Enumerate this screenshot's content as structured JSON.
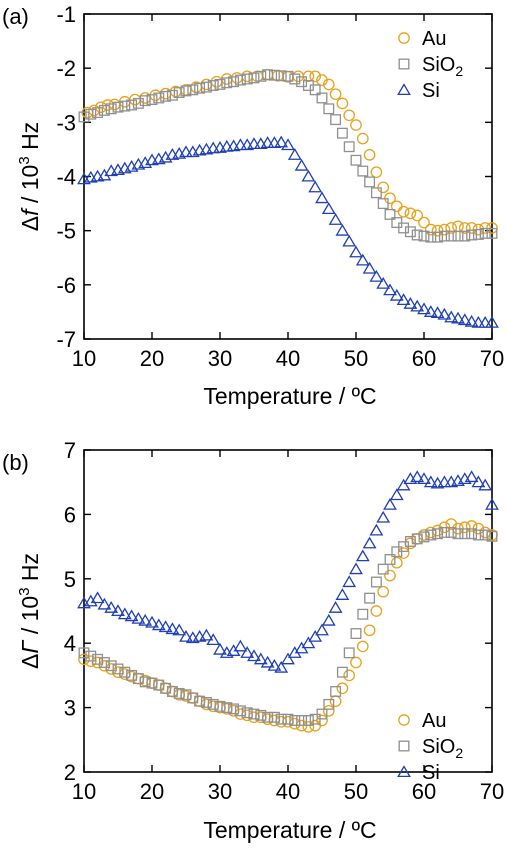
{
  "chart_data": [
    {
      "panel": "(a)",
      "type": "scatter",
      "xlabel": "Temperature / ºC",
      "ylabel_prefix": "Δ",
      "ylabel_symbol": "f",
      "ylabel_mid": " / 10",
      "ylabel_exp": "3",
      "ylabel_unit": " Hz",
      "xlim": [
        10,
        70
      ],
      "ylim": [
        -7,
        -1
      ],
      "xticks": [
        10,
        20,
        30,
        40,
        50,
        60,
        70
      ],
      "yticks": [
        -7,
        -6,
        -5,
        -4,
        -3,
        -2,
        -1
      ],
      "legend_position": "top-right",
      "series": [
        {
          "name": "Au",
          "sub": "",
          "marker": "circle",
          "color": "#e8a21a",
          "x": [
            10.5,
            11.5,
            12.5,
            13.5,
            14.5,
            16,
            17.5,
            19,
            20.5,
            22,
            23.5,
            25,
            26.5,
            28,
            29.5,
            31,
            32.5,
            34,
            35.5,
            37,
            38.5,
            40,
            41.5,
            43,
            44,
            45,
            46,
            47,
            48,
            49,
            50,
            51,
            52,
            53,
            54,
            55,
            56,
            57,
            58,
            59,
            60,
            61,
            62,
            63,
            64,
            65,
            66,
            67,
            68,
            69,
            70
          ],
          "y": [
            -2.82,
            -2.78,
            -2.72,
            -2.68,
            -2.67,
            -2.62,
            -2.58,
            -2.55,
            -2.5,
            -2.47,
            -2.43,
            -2.4,
            -2.35,
            -2.3,
            -2.25,
            -2.2,
            -2.18,
            -2.15,
            -2.15,
            -2.12,
            -2.14,
            -2.16,
            -2.15,
            -2.15,
            -2.15,
            -2.22,
            -2.3,
            -2.48,
            -2.65,
            -2.87,
            -3.05,
            -3.3,
            -3.6,
            -3.92,
            -4.2,
            -4.4,
            -4.55,
            -4.65,
            -4.68,
            -4.72,
            -4.85,
            -4.98,
            -5.0,
            -4.98,
            -4.95,
            -4.92,
            -4.95,
            -4.95,
            -4.98,
            -4.95,
            -4.95
          ]
        },
        {
          "name": "SiO",
          "sub": "2",
          "marker": "square",
          "color": "#909090",
          "x": [
            10,
            11,
            12,
            13,
            14,
            15,
            16,
            17,
            18,
            19,
            20,
            21,
            22,
            23,
            24,
            25,
            26,
            27,
            28,
            29,
            30,
            31,
            32,
            33,
            34,
            35,
            36,
            37,
            38,
            39,
            40,
            41,
            42,
            43,
            44,
            45,
            46,
            47,
            48,
            49,
            50,
            51,
            52,
            53,
            54,
            55,
            56,
            57,
            58,
            59,
            60,
            61,
            62,
            63,
            64,
            65,
            66,
            67,
            68,
            69,
            70
          ],
          "y": [
            -2.9,
            -2.85,
            -2.82,
            -2.78,
            -2.75,
            -2.72,
            -2.7,
            -2.68,
            -2.65,
            -2.6,
            -2.58,
            -2.55,
            -2.52,
            -2.5,
            -2.45,
            -2.42,
            -2.4,
            -2.37,
            -2.35,
            -2.32,
            -2.3,
            -2.27,
            -2.25,
            -2.22,
            -2.2,
            -2.18,
            -2.15,
            -2.12,
            -2.13,
            -2.14,
            -2.15,
            -2.2,
            -2.25,
            -2.32,
            -2.4,
            -2.55,
            -2.75,
            -2.95,
            -3.2,
            -3.45,
            -3.7,
            -3.9,
            -4.1,
            -4.3,
            -4.5,
            -4.7,
            -4.85,
            -4.95,
            -5.02,
            -5.08,
            -5.1,
            -5.12,
            -5.12,
            -5.1,
            -5.1,
            -5.1,
            -5.1,
            -5.08,
            -5.07,
            -5.05,
            -5.05
          ]
        },
        {
          "name": "Si",
          "sub": "",
          "marker": "triangle",
          "color": "#1f3fb5",
          "x": [
            10,
            11,
            12,
            13,
            14,
            15,
            16,
            17,
            18,
            19,
            20,
            21,
            22,
            23,
            24,
            25,
            26,
            27,
            28,
            29,
            30,
            31,
            32,
            33,
            34,
            35,
            36,
            37,
            38,
            39,
            40,
            41,
            42,
            43,
            44,
            45,
            46,
            47,
            48,
            49,
            50,
            51,
            52,
            53,
            54,
            55,
            56,
            57,
            58,
            59,
            60,
            61,
            62,
            63,
            64,
            65,
            66,
            67,
            68,
            69,
            70
          ],
          "y": [
            -4.05,
            -4.02,
            -4.0,
            -3.98,
            -3.9,
            -3.88,
            -3.85,
            -3.82,
            -3.78,
            -3.75,
            -3.7,
            -3.68,
            -3.65,
            -3.6,
            -3.58,
            -3.55,
            -3.55,
            -3.52,
            -3.5,
            -3.48,
            -3.47,
            -3.45,
            -3.44,
            -3.42,
            -3.42,
            -3.4,
            -3.4,
            -3.38,
            -3.38,
            -3.37,
            -3.42,
            -3.6,
            -3.8,
            -4.0,
            -4.2,
            -4.4,
            -4.6,
            -4.8,
            -5.0,
            -5.2,
            -5.4,
            -5.55,
            -5.7,
            -5.85,
            -5.98,
            -6.1,
            -6.2,
            -6.28,
            -6.35,
            -6.4,
            -6.45,
            -6.5,
            -6.52,
            -6.55,
            -6.6,
            -6.62,
            -6.65,
            -6.68,
            -6.7,
            -6.7,
            -6.7
          ]
        }
      ]
    },
    {
      "panel": "(b)",
      "type": "scatter",
      "xlabel": "Temperature / ºC",
      "ylabel_prefix": "Δ",
      "ylabel_symbol": "Γ",
      "ylabel_mid": " / 10",
      "ylabel_exp": "3",
      "ylabel_unit": " Hz",
      "xlim": [
        10,
        70
      ],
      "ylim": [
        2,
        7
      ],
      "xticks": [
        10,
        20,
        30,
        40,
        50,
        60,
        70
      ],
      "yticks": [
        2,
        3,
        4,
        5,
        6,
        7
      ],
      "legend_position": "bottom-right",
      "series": [
        {
          "name": "Au",
          "sub": "",
          "marker": "circle",
          "color": "#e8a21a",
          "x": [
            10,
            11,
            12,
            13,
            14,
            15,
            16,
            17,
            18,
            19,
            20,
            21,
            22,
            23,
            24,
            25,
            26,
            27,
            28,
            29,
            30,
            31,
            32,
            33,
            34,
            35,
            36,
            37,
            38,
            39,
            40,
            41,
            42,
            43,
            44,
            45,
            46,
            47,
            48,
            49,
            50,
            51,
            52,
            53,
            54,
            55,
            56,
            57,
            58,
            59,
            60,
            61,
            62,
            63,
            64,
            65,
            66,
            67,
            68,
            69,
            70
          ],
          "y": [
            3.75,
            3.72,
            3.7,
            3.65,
            3.6,
            3.55,
            3.52,
            3.48,
            3.45,
            3.42,
            3.38,
            3.35,
            3.3,
            3.25,
            3.2,
            3.18,
            3.15,
            3.1,
            3.05,
            3.02,
            3.0,
            2.98,
            2.95,
            2.9,
            2.88,
            2.85,
            2.85,
            2.82,
            2.8,
            2.78,
            2.78,
            2.75,
            2.72,
            2.7,
            2.72,
            2.8,
            2.95,
            3.1,
            3.3,
            3.5,
            3.7,
            3.95,
            4.2,
            4.5,
            4.8,
            5.05,
            5.25,
            5.4,
            5.55,
            5.62,
            5.68,
            5.72,
            5.75,
            5.8,
            5.85,
            5.78,
            5.8,
            5.82,
            5.78,
            5.72,
            5.68
          ]
        },
        {
          "name": "SiO",
          "sub": "2",
          "marker": "square",
          "color": "#909090",
          "x": [
            10,
            11,
            12,
            13,
            14,
            15,
            16,
            17,
            18,
            19,
            20,
            21,
            22,
            23,
            24,
            25,
            26,
            27,
            28,
            29,
            30,
            31,
            32,
            33,
            34,
            35,
            36,
            37,
            38,
            39,
            40,
            41,
            42,
            43,
            44,
            45,
            46,
            47,
            48,
            49,
            50,
            51,
            52,
            53,
            54,
            55,
            56,
            57,
            58,
            59,
            60,
            61,
            62,
            63,
            64,
            65,
            66,
            67,
            68,
            69,
            70
          ],
          "y": [
            3.85,
            3.8,
            3.75,
            3.7,
            3.65,
            3.6,
            3.55,
            3.5,
            3.45,
            3.4,
            3.38,
            3.35,
            3.3,
            3.25,
            3.22,
            3.2,
            3.15,
            3.1,
            3.08,
            3.05,
            3.02,
            3.0,
            2.98,
            2.95,
            2.92,
            2.9,
            2.88,
            2.85,
            2.85,
            2.82,
            2.82,
            2.8,
            2.8,
            2.8,
            2.82,
            2.9,
            3.05,
            3.25,
            3.55,
            3.85,
            4.15,
            4.45,
            4.7,
            4.95,
            5.15,
            5.3,
            5.42,
            5.5,
            5.58,
            5.62,
            5.65,
            5.68,
            5.7,
            5.72,
            5.72,
            5.7,
            5.7,
            5.7,
            5.68,
            5.68,
            5.66
          ]
        },
        {
          "name": "Si",
          "sub": "",
          "marker": "triangle",
          "color": "#1f3fb5",
          "x": [
            10,
            11,
            12,
            13,
            14,
            15,
            16,
            17,
            18,
            19,
            20,
            21,
            22,
            23,
            24,
            25,
            26,
            27,
            28,
            29,
            30,
            31,
            32,
            33,
            34,
            35,
            36,
            37,
            38,
            39,
            40,
            41,
            42,
            43,
            44,
            45,
            46,
            47,
            48,
            49,
            50,
            51,
            52,
            53,
            54,
            55,
            56,
            57,
            58,
            59,
            60,
            61,
            62,
            63,
            64,
            65,
            66,
            67,
            68,
            69,
            70
          ],
          "y": [
            4.62,
            4.65,
            4.7,
            4.6,
            4.55,
            4.5,
            4.45,
            4.42,
            4.38,
            4.35,
            4.32,
            4.28,
            4.25,
            4.22,
            4.2,
            4.1,
            4.08,
            4.1,
            4.12,
            4.05,
            3.9,
            3.85,
            3.88,
            3.95,
            3.85,
            3.8,
            3.75,
            3.7,
            3.65,
            3.62,
            3.75,
            3.85,
            3.92,
            4.0,
            4.1,
            4.2,
            4.35,
            4.55,
            4.75,
            4.95,
            5.15,
            5.35,
            5.55,
            5.75,
            5.95,
            6.15,
            6.3,
            6.45,
            6.55,
            6.58,
            6.55,
            6.5,
            6.48,
            6.5,
            6.5,
            6.52,
            6.55,
            6.58,
            6.5,
            6.45,
            6.15
          ]
        }
      ]
    }
  ]
}
